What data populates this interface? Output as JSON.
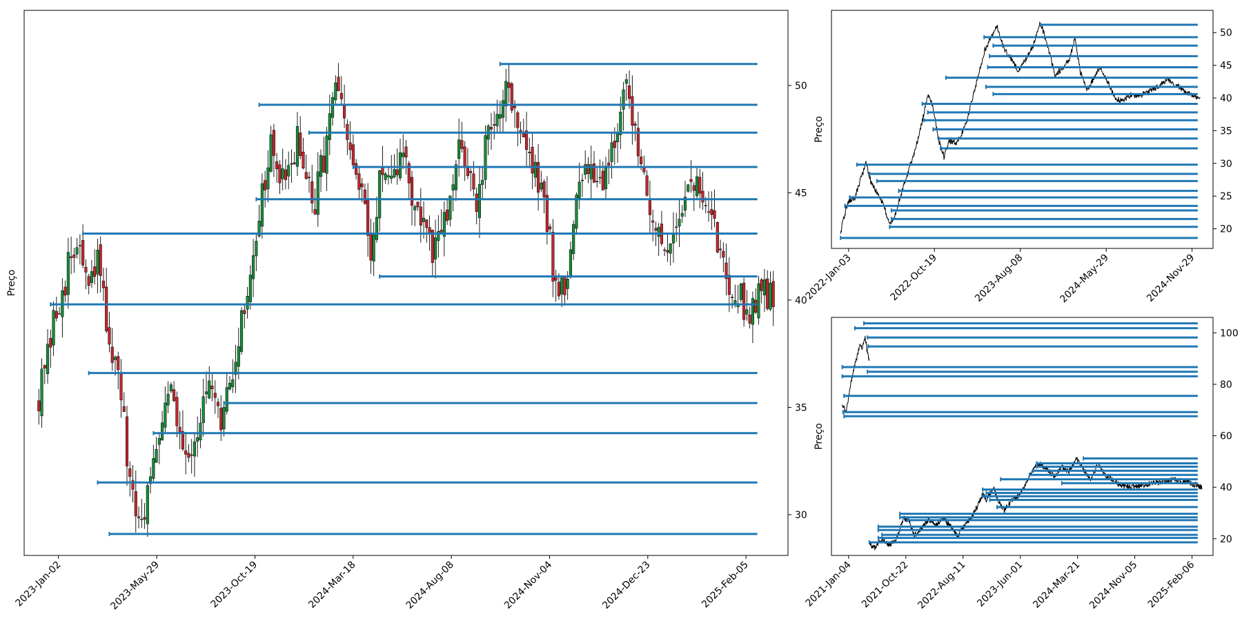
{
  "chart_data": [
    {
      "type": "candlestick",
      "ylabel": "Preço",
      "xlabel": "",
      "title": "",
      "xtick_labels": [
        "2023-Jan-02",
        "2023-May-29",
        "2023-Oct-19",
        "2024-Mar-18",
        "2024-Aug-08",
        "2024-Nov-04",
        "2024-Dec-23",
        "2025-Feb-05"
      ],
      "yticks": [
        30,
        35,
        40,
        45,
        50
      ],
      "ylim": [
        28.1,
        53.5
      ],
      "xlim": [
        -5,
        255
      ],
      "y_axis_side": "right",
      "candle_colors": {
        "up": "#1a8a3a",
        "down": "#c0282d",
        "wick": "#000000"
      },
      "price_path": [
        [
          0,
          35.6
        ],
        [
          3,
          37.2
        ],
        [
          6,
          39.5
        ],
        [
          10,
          41.5
        ],
        [
          14,
          42.6
        ],
        [
          17,
          40.2
        ],
        [
          20,
          41.8
        ],
        [
          24,
          38.3
        ],
        [
          28,
          35.5
        ],
        [
          31,
          31.0
        ],
        [
          34,
          29.6
        ],
        [
          37,
          30.8
        ],
        [
          41,
          34.2
        ],
        [
          44,
          36.4
        ],
        [
          47,
          34.5
        ],
        [
          51,
          32.8
        ],
        [
          55,
          34.6
        ],
        [
          58,
          35.7
        ],
        [
          62,
          34.0
        ],
        [
          66,
          36.8
        ],
        [
          70,
          39.5
        ],
        [
          75,
          44.2
        ],
        [
          79,
          47.0
        ],
        [
          84,
          45.0
        ],
        [
          88,
          47.8
        ],
        [
          91,
          45.2
        ],
        [
          94,
          44.5
        ],
        [
          98,
          47.5
        ],
        [
          101,
          50.1
        ],
        [
          104,
          48.0
        ],
        [
          107,
          46.2
        ],
        [
          110,
          44.8
        ],
        [
          113,
          41.8
        ],
        [
          116,
          46.0
        ],
        [
          120,
          45.0
        ],
        [
          124,
          47.2
        ],
        [
          127,
          44.7
        ],
        [
          131,
          43.5
        ],
        [
          134,
          41.9
        ],
        [
          137,
          43.2
        ],
        [
          140,
          44.2
        ],
        [
          143,
          47.0
        ],
        [
          146,
          46.5
        ],
        [
          149,
          43.8
        ],
        [
          152,
          47.0
        ],
        [
          156,
          48.6
        ],
        [
          159,
          50.5
        ],
        [
          162,
          48.6
        ],
        [
          165,
          47.8
        ],
        [
          168,
          46.0
        ],
        [
          172,
          44.8
        ],
        [
          176,
          40.5
        ],
        [
          180,
          41.2
        ],
        [
          184,
          45.3
        ],
        [
          188,
          46.5
        ],
        [
          192,
          45.5
        ],
        [
          196,
          47.8
        ],
        [
          200,
          49.5
        ],
        [
          204,
          47.5
        ],
        [
          208,
          44.5
        ],
        [
          212,
          42.0
        ],
        [
          215,
          43.1
        ],
        [
          218,
          44.2
        ],
        [
          222,
          45.5
        ],
        [
          226,
          44.8
        ],
        [
          230,
          43.2
        ],
        [
          234,
          41.3
        ],
        [
          238,
          40.2
        ],
        [
          242,
          39.5
        ],
        [
          246,
          40.8
        ],
        [
          250,
          39.8
        ]
      ],
      "hlines": [
        {
          "y": 51.0,
          "x_start": 157
        },
        {
          "y": 49.1,
          "x_start": 75
        },
        {
          "y": 47.8,
          "x_start": 92
        },
        {
          "y": 46.2,
          "x_start": 107
        },
        {
          "y": 44.7,
          "x_start": 74
        },
        {
          "y": 43.1,
          "x_start": 15
        },
        {
          "y": 41.1,
          "x_start": 116
        },
        {
          "y": 39.8,
          "x_start": 4
        },
        {
          "y": 36.6,
          "x_start": 17
        },
        {
          "y": 35.2,
          "x_start": 63
        },
        {
          "y": 33.8,
          "x_start": 39
        },
        {
          "y": 31.5,
          "x_start": 20
        },
        {
          "y": 29.1,
          "x_start": 24
        }
      ],
      "hline_color": "#1f77b4",
      "grid": false,
      "legend": "none"
    },
    {
      "type": "line",
      "ylabel": "Preço",
      "xlabel": "",
      "title": "",
      "xtick_labels": [
        "2022-Jan-03",
        "2022-Oct-19",
        "2023-Aug-08",
        "2024-May-29",
        "2024-Nov-29"
      ],
      "yticks": [
        20,
        25,
        30,
        35,
        40,
        45,
        50
      ],
      "ylim": [
        17.0,
        53.4
      ],
      "xlim": [
        -25,
        1025
      ],
      "y_axis_side": "right",
      "line_color": "#000000",
      "price_path": [
        [
          0,
          19.2
        ],
        [
          5,
          20.8
        ],
        [
          20,
          24.0
        ],
        [
          40,
          24.8
        ],
        [
          55,
          27.5
        ],
        [
          70,
          30.0
        ],
        [
          85,
          27.0
        ],
        [
          100,
          25.5
        ],
        [
          120,
          23.5
        ],
        [
          135,
          20.5
        ],
        [
          150,
          22.0
        ],
        [
          165,
          25.0
        ],
        [
          185,
          28.5
        ],
        [
          205,
          32.0
        ],
        [
          225,
          36.5
        ],
        [
          240,
          40.5
        ],
        [
          255,
          38.5
        ],
        [
          270,
          33.5
        ],
        [
          285,
          31.0
        ],
        [
          300,
          33.5
        ],
        [
          320,
          33.0
        ],
        [
          345,
          36.0
        ],
        [
          370,
          41.5
        ],
        [
          395,
          47.0
        ],
        [
          415,
          49.5
        ],
        [
          430,
          51.0
        ],
        [
          450,
          47.5
        ],
        [
          470,
          46.0
        ],
        [
          490,
          44.0
        ],
        [
          510,
          46.0
        ],
        [
          530,
          48.0
        ],
        [
          550,
          51.5
        ],
        [
          570,
          48.0
        ],
        [
          590,
          43.5
        ],
        [
          610,
          44.5
        ],
        [
          630,
          46.0
        ],
        [
          645,
          49.0
        ],
        [
          660,
          44.0
        ],
        [
          680,
          41.0
        ],
        [
          700,
          43.5
        ],
        [
          715,
          44.5
        ],
        [
          735,
          42.5
        ],
        [
          755,
          40.0
        ],
        [
          775,
          39.5
        ],
        [
          800,
          40.5
        ],
        [
          825,
          40.3
        ],
        [
          850,
          41.0
        ],
        [
          875,
          41.8
        ],
        [
          900,
          42.8
        ],
        [
          920,
          42.0
        ],
        [
          945,
          41.2
        ],
        [
          965,
          40.5
        ],
        [
          990,
          39.8
        ]
      ],
      "hlines": [
        {
          "y": 51.2,
          "x_start": 550
        },
        {
          "y": 49.3,
          "x_start": 395
        },
        {
          "y": 48.0,
          "x_start": 420
        },
        {
          "y": 46.4,
          "x_start": 410
        },
        {
          "y": 44.7,
          "x_start": 405
        },
        {
          "y": 43.1,
          "x_start": 290
        },
        {
          "y": 41.7,
          "x_start": 400
        },
        {
          "y": 40.6,
          "x_start": 420
        },
        {
          "y": 39.1,
          "x_start": 225
        },
        {
          "y": 37.8,
          "x_start": 240
        },
        {
          "y": 36.6,
          "x_start": 230
        },
        {
          "y": 35.2,
          "x_start": 255
        },
        {
          "y": 33.8,
          "x_start": 270
        },
        {
          "y": 32.3,
          "x_start": 275
        },
        {
          "y": 29.8,
          "x_start": 45
        },
        {
          "y": 28.4,
          "x_start": 80
        },
        {
          "y": 27.3,
          "x_start": 100
        },
        {
          "y": 25.8,
          "x_start": 160
        },
        {
          "y": 24.8,
          "x_start": 25
        },
        {
          "y": 23.5,
          "x_start": 12
        },
        {
          "y": 22.8,
          "x_start": 140
        },
        {
          "y": 21.5,
          "x_start": 140
        },
        {
          "y": 20.3,
          "x_start": 135
        },
        {
          "y": 18.6,
          "x_start": 0
        }
      ],
      "hline_color": "#1f77b4",
      "grid": false,
      "legend": "none"
    },
    {
      "type": "line",
      "ylabel": "Preço",
      "xlabel": "",
      "title": "",
      "xtick_labels": [
        "2021-Jan-04",
        "2021-Oct-22",
        "2022-Aug-11",
        "2023-Jun-01",
        "2024-Mar-21",
        "2024-Nov-05",
        "2025-Feb-06"
      ],
      "yticks": [
        20,
        40,
        60,
        80,
        100
      ],
      "ylim": [
        13.5,
        106.0
      ],
      "xlim": [
        -3,
        103
      ],
      "y_axis_side": "right",
      "line_color": "#000000",
      "price_path": [
        [
          0,
          72
        ],
        [
          1,
          69
        ],
        [
          2,
          77
        ],
        [
          3,
          85
        ],
        [
          4,
          90
        ],
        [
          5,
          96
        ],
        [
          5.6,
          94
        ],
        [
          6.4,
          98
        ],
        [
          7,
          92
        ],
        [
          7.5,
          89
        ],
        [
          7.6,
          null
        ],
        [
          7.7,
          18
        ],
        [
          9,
          16.5
        ],
        [
          11,
          19.8
        ],
        [
          13,
          17.5
        ],
        [
          15,
          19.5
        ],
        [
          17,
          28
        ],
        [
          18.5,
          27
        ],
        [
          20,
          21
        ],
        [
          22,
          24
        ],
        [
          24,
          27.5
        ],
        [
          26,
          25
        ],
        [
          28,
          28
        ],
        [
          30,
          25
        ],
        [
          32,
          21
        ],
        [
          34,
          25
        ],
        [
          37,
          31
        ],
        [
          39,
          37.5
        ],
        [
          40,
          35
        ],
        [
          42,
          40
        ],
        [
          43,
          36
        ],
        [
          45,
          31
        ],
        [
          47,
          35
        ],
        [
          49,
          37
        ],
        [
          51,
          41
        ],
        [
          53,
          47
        ],
        [
          55,
          49
        ],
        [
          57,
          47
        ],
        [
          59,
          44
        ],
        [
          61,
          48
        ],
        [
          63,
          46
        ],
        [
          65,
          51
        ],
        [
          67,
          47
        ],
        [
          69,
          43
        ],
        [
          71,
          49
        ],
        [
          73,
          45
        ],
        [
          75,
          43
        ],
        [
          77,
          41
        ],
        [
          80,
          40
        ],
        [
          84,
          41
        ],
        [
          88,
          42
        ],
        [
          92,
          43
        ],
        [
          96,
          42
        ],
        [
          100,
          40
        ]
      ],
      "hlines": [
        {
          "y": 103.7,
          "x_start": 6
        },
        {
          "y": 101.8,
          "x_start": 3.5
        },
        {
          "y": 98.2,
          "x_start": 7
        },
        {
          "y": 94.7,
          "x_start": 7.2
        },
        {
          "y": 86.7,
          "x_start": 0
        },
        {
          "y": 84.9,
          "x_start": 7
        },
        {
          "y": 83.1,
          "x_start": 0
        },
        {
          "y": 75.5,
          "x_start": 0.5
        },
        {
          "y": 69.2,
          "x_start": 0.2
        },
        {
          "y": 67.6,
          "x_start": 0.5
        },
        {
          "y": 51.2,
          "x_start": 67
        },
        {
          "y": 49.3,
          "x_start": 54
        },
        {
          "y": 48.0,
          "x_start": 54
        },
        {
          "y": 46.4,
          "x_start": 53
        },
        {
          "y": 44.8,
          "x_start": 52
        },
        {
          "y": 43.1,
          "x_start": 44
        },
        {
          "y": 41.6,
          "x_start": 61
        },
        {
          "y": 39.1,
          "x_start": 39
        },
        {
          "y": 37.8,
          "x_start": 40
        },
        {
          "y": 36.5,
          "x_start": 39
        },
        {
          "y": 35.1,
          "x_start": 41
        },
        {
          "y": 32.3,
          "x_start": 43
        },
        {
          "y": 29.7,
          "x_start": 16
        },
        {
          "y": 28.3,
          "x_start": 16
        },
        {
          "y": 27.2,
          "x_start": 18
        },
        {
          "y": 24.7,
          "x_start": 10
        },
        {
          "y": 23.4,
          "x_start": 10
        },
        {
          "y": 21.5,
          "x_start": 11
        },
        {
          "y": 20.3,
          "x_start": 10
        },
        {
          "y": 18.6,
          "x_start": 7.5
        }
      ],
      "hline_color": "#1f77b4",
      "grid": false,
      "legend": "none"
    }
  ]
}
